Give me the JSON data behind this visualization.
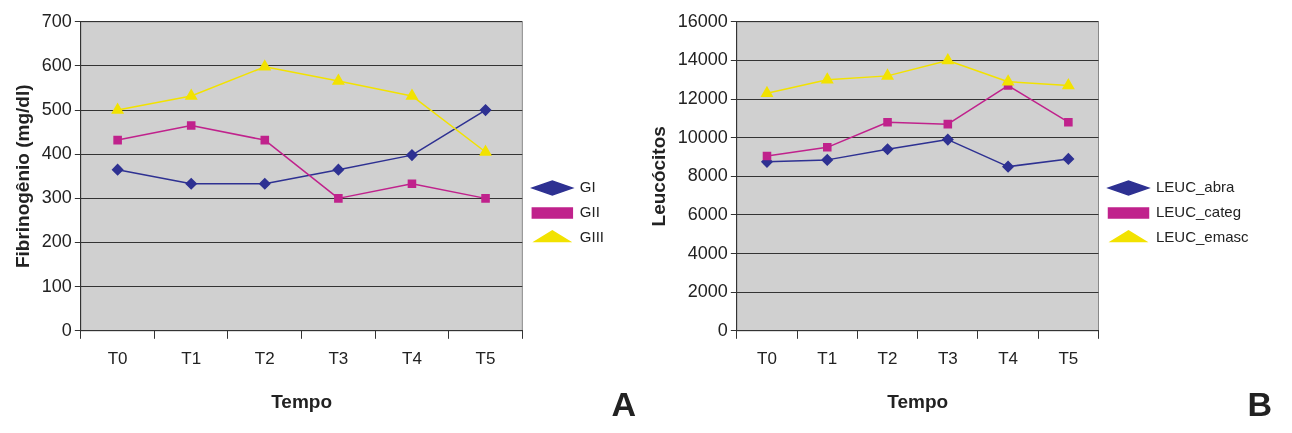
{
  "chart_data": [
    {
      "type": "line",
      "xlabel": "Tempo",
      "ylabel": "Fibrinogênio (mg/dl)",
      "categories": [
        "T0",
        "T1",
        "T2",
        "T3",
        "T4",
        "T5"
      ],
      "series": [
        {
          "name": "GI",
          "color": "#2e3192",
          "marker": "diamond",
          "values": [
            365,
            333,
            333,
            365,
            398,
            500
          ]
        },
        {
          "name": "GII",
          "color": "#c0228c",
          "marker": "square",
          "values": [
            432,
            465,
            432,
            300,
            333,
            300
          ]
        },
        {
          "name": "GIII",
          "color": "#f2e200",
          "marker": "triangle",
          "values": [
            500,
            532,
            598,
            566,
            532,
            405
          ]
        }
      ],
      "ylim": [
        0,
        700
      ],
      "yticks": [
        0,
        100,
        200,
        300,
        400,
        500,
        600,
        700
      ],
      "grid": "y",
      "legend": "right",
      "annotations": [
        "A"
      ]
    },
    {
      "type": "line",
      "xlabel": "Tempo",
      "ylabel": "Leucócitos",
      "categories": [
        "T0",
        "T1",
        "T2",
        "T3",
        "T4",
        "T5"
      ],
      "series": [
        {
          "name": "LEUC_abra",
          "color": "#2e3192",
          "marker": "diamond",
          "values": [
            8750,
            8850,
            9400,
            9900,
            8500,
            8900
          ]
        },
        {
          "name": "LEUC_categ",
          "color": "#c0228c",
          "marker": "square",
          "values": [
            9050,
            9500,
            10800,
            10700,
            12700,
            10800
          ]
        },
        {
          "name": "LEUC_emasc",
          "color": "#f2e200",
          "marker": "triangle",
          "values": [
            12300,
            13000,
            13200,
            14000,
            12900,
            12700
          ]
        }
      ],
      "ylim": [
        0,
        16000
      ],
      "yticks": [
        0,
        2000,
        4000,
        6000,
        8000,
        10000,
        12000,
        14000,
        16000
      ],
      "grid": "y",
      "legend": "right",
      "annotations": [
        "B"
      ]
    }
  ]
}
